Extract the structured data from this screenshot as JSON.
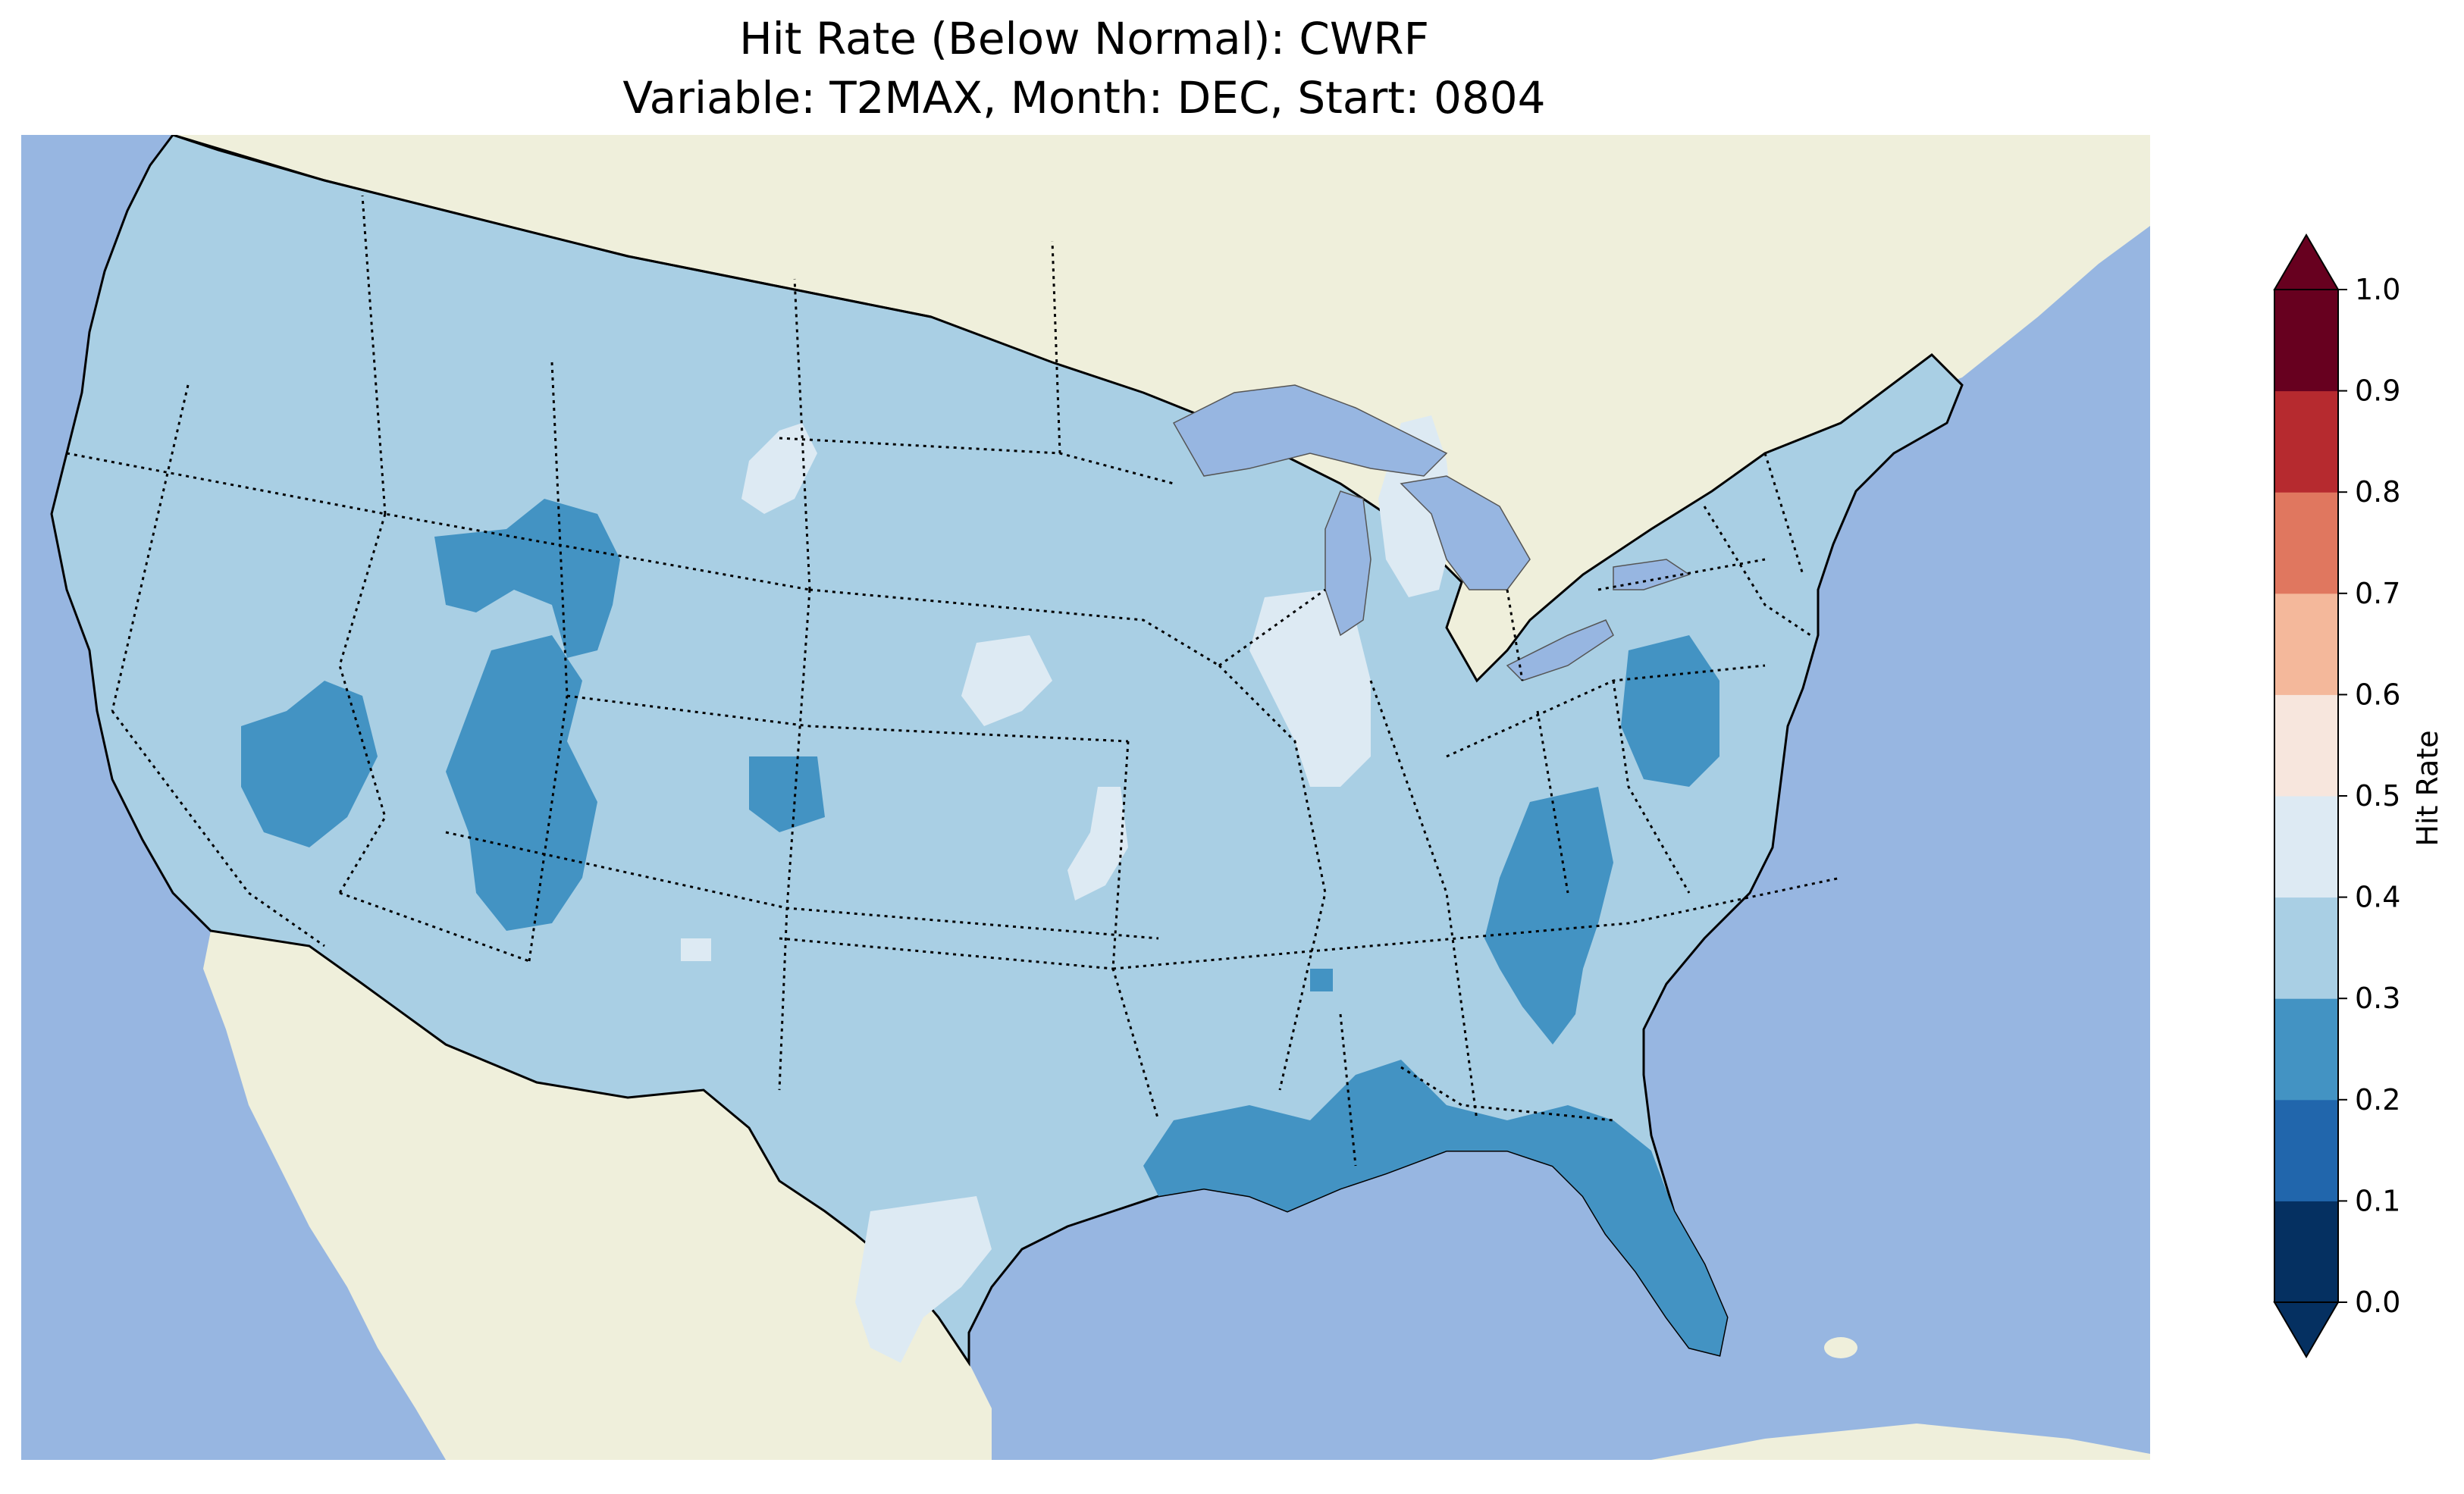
{
  "title": {
    "line1": "Hit Rate (Below Normal): CWRF",
    "line2": "Variable: T2MAX, Month: DEC, Start: 0804"
  },
  "colors": {
    "ocean": "#97b6e1",
    "land_outside": "#efefdb",
    "lakes": "#97b6e1",
    "bin_0_1": "#053061",
    "bin_1_2": "#2166ac",
    "bin_2_3": "#4393c3",
    "bin_3_4": "#a9cfe4",
    "bin_4_5": "#ddeaf3",
    "bin_5_6": "#f7e6dd",
    "bin_6_7": "#f4b89b",
    "bin_7_8": "#e0775f",
    "bin_8_9": "#b62a2f",
    "bin_9_10": "#67001f"
  },
  "map_data": {
    "type": "filled-grid-map",
    "variable": "Hit Rate",
    "region": "Contiguous United States",
    "dominant_range": [
      0.3,
      0.4
    ],
    "regions_0_2_to_0_3": [
      "southern Idaho / northwest Wyoming",
      "northern Nevada",
      "Utah",
      "northeast Colorado",
      "West Virginia / Virginia",
      "western North Carolina / Georgia",
      "Gulf Coast (Louisiana to Florida)",
      "Florida peninsula"
    ],
    "regions_0_4_to_0_5": [
      "eastern Montana",
      "Illinois",
      "western Michigan",
      "southern Nebraska",
      "eastern Kansas / Oklahoma",
      "south Texas",
      "eastern New Mexico"
    ]
  },
  "colorbar": {
    "label": "Hit Rate",
    "ticks": [
      "0.0",
      "0.1",
      "0.2",
      "0.3",
      "0.4",
      "0.5",
      "0.6",
      "0.7",
      "0.8",
      "0.9",
      "1.0"
    ],
    "extend": "both"
  }
}
